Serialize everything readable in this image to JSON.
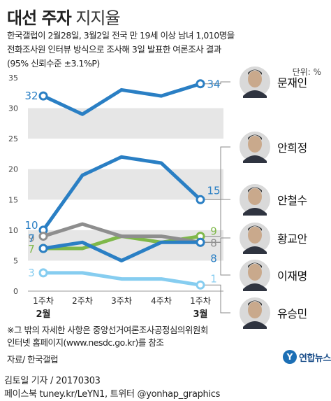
{
  "header": {
    "title_bold": "대선 주자",
    "title_light": " 지지율",
    "lines": [
      "한국갤럽이 2월28일, 3월2일 전국 만 19세 이상 남녀 1,010명을",
      "전화조사원 인터뷰 방식으로 조사해 3일 발표한 여론조사 결과",
      "(95% 신뢰수준 ±3.1%P)"
    ],
    "unit": "단위: %"
  },
  "chart_data": {
    "type": "line",
    "x": [
      "1주차",
      "2주차",
      "3주차",
      "4주차",
      "1주차"
    ],
    "month_labels": [
      {
        "index": 0,
        "label": "2월"
      },
      {
        "index": 4,
        "label": "3월"
      }
    ],
    "ylim": [
      0,
      35
    ],
    "yticks": [
      0,
      5,
      10,
      15,
      20,
      25,
      30,
      35
    ],
    "grid": "alternating bands",
    "series": [
      {
        "name": "문재인",
        "values": [
          32,
          29,
          33,
          32,
          34
        ],
        "color": "#2a7fc4",
        "start_label": "32",
        "end_label": "34"
      },
      {
        "name": "안희정",
        "values": [
          10,
          19,
          22,
          21,
          15
        ],
        "color": "#2a7fc4",
        "start_label": "10",
        "end_label": "15"
      },
      {
        "name": "안철수",
        "values": [
          7,
          7,
          9,
          8,
          9
        ],
        "color": "#7fb84a",
        "start_label": "7",
        "end_label": "9"
      },
      {
        "name": "황교안",
        "values": [
          9,
          11,
          9,
          9,
          8
        ],
        "color": "#8e8e8e",
        "start_label": "9",
        "end_label": "8"
      },
      {
        "name": "이재명",
        "values": [
          7,
          8,
          5,
          8,
          8
        ],
        "color": "#2a7fc4",
        "start_label": "7",
        "end_label": "8"
      },
      {
        "name": "유승민",
        "values": [
          3,
          3,
          2,
          2,
          1
        ],
        "color": "#86cdf0",
        "start_label": "3",
        "end_label": "1"
      }
    ]
  },
  "footer": {
    "note_lines": [
      "※그 밖의 자세한 사항은 중앙선거여론조사공정심의위원회",
      "인터넷 홈페이지(www.nesdc.go.kr)를 참조"
    ],
    "source": "자료/ 한국갤럽",
    "author": "김토일 기자 / 20170303",
    "social": "페이스북 tuney.kr/LeYN1, 트위터 @yonhap_graphics",
    "logo_text": "연합뉴스"
  }
}
